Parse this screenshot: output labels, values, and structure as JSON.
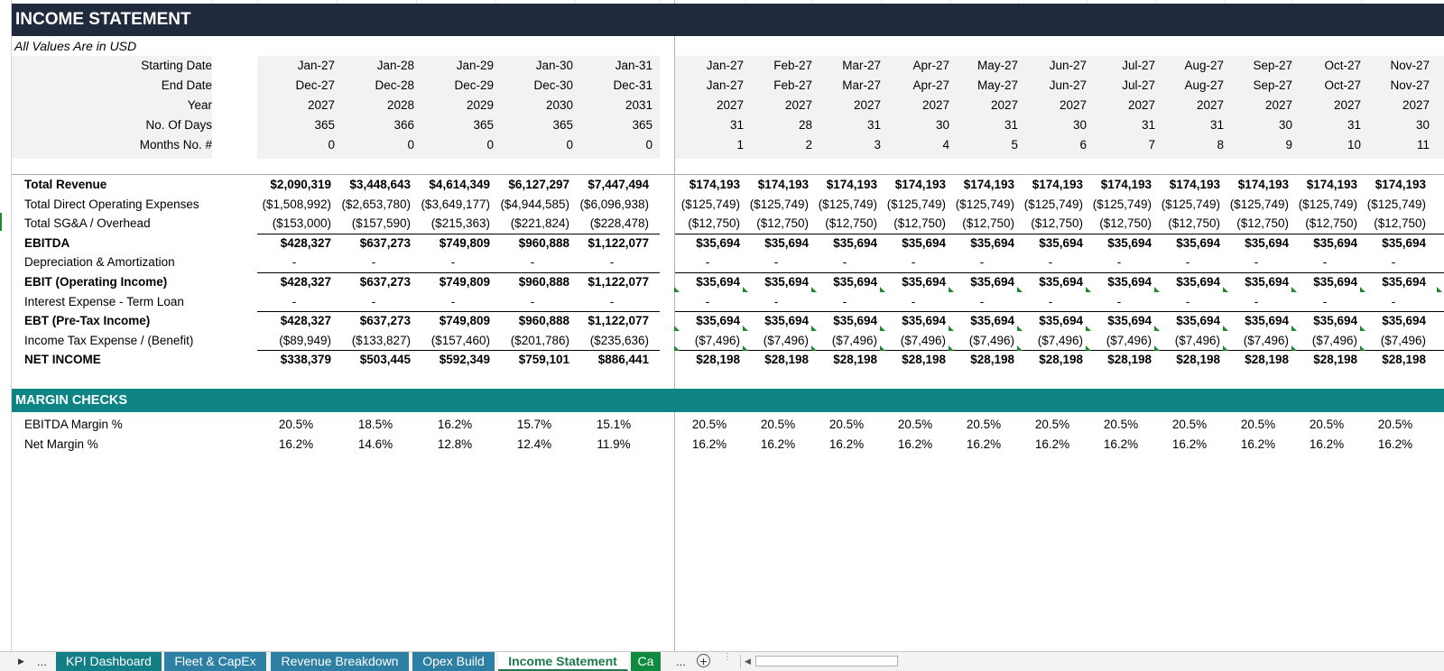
{
  "sheet": {
    "title": "INCOME STATEMENT",
    "subtitle": "All Values Are in USD",
    "header_labels": [
      "Starting Date",
      "End Date",
      "Year",
      "No. Of Days",
      "Months No. #"
    ],
    "annual_header": [
      [
        "Jan-27",
        "Dec-27",
        "2027",
        "365",
        "0"
      ],
      [
        "Jan-28",
        "Dec-28",
        "2028",
        "366",
        "0"
      ],
      [
        "Jan-29",
        "Dec-29",
        "2029",
        "365",
        "0"
      ],
      [
        "Jan-30",
        "Dec-30",
        "2030",
        "365",
        "0"
      ],
      [
        "Jan-31",
        "Dec-31",
        "2031",
        "365",
        "0"
      ]
    ],
    "monthly_header": [
      [
        "Jan-27",
        "Jan-27",
        "2027",
        "31",
        "1"
      ],
      [
        "Feb-27",
        "Feb-27",
        "2027",
        "28",
        "2"
      ],
      [
        "Mar-27",
        "Mar-27",
        "2027",
        "31",
        "3"
      ],
      [
        "Apr-27",
        "Apr-27",
        "2027",
        "30",
        "4"
      ],
      [
        "May-27",
        "May-27",
        "2027",
        "31",
        "5"
      ],
      [
        "Jun-27",
        "Jun-27",
        "2027",
        "30",
        "6"
      ],
      [
        "Jul-27",
        "Jul-27",
        "2027",
        "31",
        "7"
      ],
      [
        "Aug-27",
        "Aug-27",
        "2027",
        "31",
        "8"
      ],
      [
        "Sep-27",
        "Sep-27",
        "2027",
        "30",
        "9"
      ],
      [
        "Oct-27",
        "Oct-27",
        "2027",
        "31",
        "10"
      ],
      [
        "Nov-27",
        "Nov-27",
        "2027",
        "30",
        "11"
      ]
    ],
    "rows": [
      {
        "label": "Total Revenue",
        "bold": true,
        "annual": [
          "$2,090,319",
          "$3,448,643",
          "$4,614,349",
          "$6,127,297",
          "$7,447,494"
        ],
        "monthly": "$174,193"
      },
      {
        "label": "Total Direct Operating Expenses",
        "bold": false,
        "annual": [
          "($1,508,992)",
          "($2,653,780)",
          "($3,649,177)",
          "($4,944,585)",
          "($6,096,938)"
        ],
        "monthly": "($125,749)"
      },
      {
        "label": "Total SG&A / Overhead",
        "bold": false,
        "annual": [
          "($153,000)",
          "($157,590)",
          "($215,363)",
          "($221,824)",
          "($228,478)"
        ],
        "monthly": "($12,750)"
      },
      {
        "label": "EBITDA",
        "bold": true,
        "annual": [
          "$428,327",
          "$637,273",
          "$749,809",
          "$960,888",
          "$1,122,077"
        ],
        "monthly": "$35,694"
      },
      {
        "label": "Depreciation & Amortization",
        "bold": false,
        "annual": [
          "-",
          "-",
          "-",
          "-",
          "-"
        ],
        "monthly": "-"
      },
      {
        "label": "EBIT (Operating Income)",
        "bold": true,
        "annual": [
          "$428,327",
          "$637,273",
          "$749,809",
          "$960,888",
          "$1,122,077"
        ],
        "monthly": "$35,694"
      },
      {
        "label": "Interest Expense - Term Loan",
        "bold": false,
        "annual": [
          "-",
          "-",
          "-",
          "-",
          "-"
        ],
        "monthly": "-"
      },
      {
        "label": "EBT (Pre-Tax Income)",
        "bold": true,
        "annual": [
          "$428,327",
          "$637,273",
          "$749,809",
          "$960,888",
          "$1,122,077"
        ],
        "monthly": "$35,694"
      },
      {
        "label": "Income Tax Expense / (Benefit)",
        "bold": false,
        "annual": [
          "($89,949)",
          "($133,827)",
          "($157,460)",
          "($201,786)",
          "($235,636)"
        ],
        "monthly": "($7,496)"
      },
      {
        "label": "NET INCOME",
        "bold": true,
        "annual": [
          "$338,379",
          "$503,445",
          "$592,349",
          "$759,101",
          "$886,441"
        ],
        "monthly": "$28,198"
      }
    ],
    "margin_title": "MARGIN CHECKS",
    "margin_rows": [
      {
        "label": "EBITDA Margin %",
        "annual": [
          "20.5%",
          "18.5%",
          "16.2%",
          "15.7%",
          "15.1%"
        ],
        "monthly": "20.5%"
      },
      {
        "label": "Net Margin %",
        "annual": [
          "16.2%",
          "14.6%",
          "12.8%",
          "12.4%",
          "11.9%"
        ],
        "monthly": "16.2%"
      }
    ]
  },
  "tabs": {
    "nav_next": "▶",
    "nav_more": "...",
    "items": [
      {
        "label": "KPI Dashboard",
        "style": "teal"
      },
      {
        "label": "Fleet & CapEx",
        "style": "blue"
      },
      {
        "label": "Revenue Breakdown",
        "style": "blue"
      },
      {
        "label": "Opex Build",
        "style": "blue"
      },
      {
        "label": "Income Statement",
        "style": "active"
      },
      {
        "label": "Ca",
        "style": "green"
      }
    ],
    "overflow": "...",
    "add": "+"
  },
  "colors": {
    "title_band": "#1f2a3c",
    "margin_band": "#0e8584",
    "tab_teal": "#147e86",
    "tab_blue": "#2e7fa4",
    "tab_active_text": "#1c7b4c",
    "error_triangle": "#1f8b2c"
  }
}
